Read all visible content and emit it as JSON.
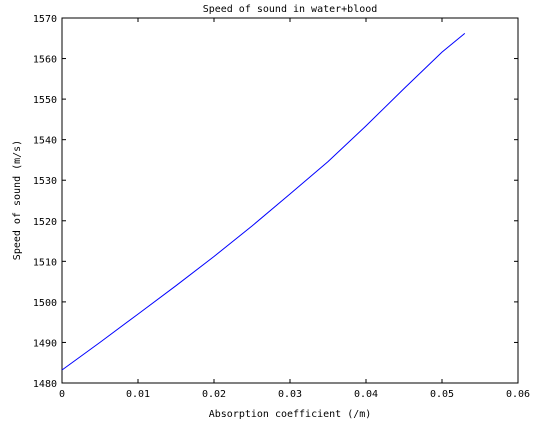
{
  "chart_data": {
    "type": "line",
    "title": "Speed of sound in water+blood",
    "xlabel": "Absorption coefficient (/m)",
    "ylabel": "Speed of sound (m/s)",
    "xlim": [
      0,
      0.06
    ],
    "ylim": [
      1480,
      1570
    ],
    "x_ticks": [
      0,
      0.01,
      0.02,
      0.03,
      0.04,
      0.05,
      0.06
    ],
    "x_tick_labels": [
      "0",
      "0.01",
      "0.02",
      "0.03",
      "0.04",
      "0.05",
      "0.06"
    ],
    "y_ticks": [
      1480,
      1490,
      1500,
      1510,
      1520,
      1530,
      1540,
      1550,
      1560,
      1570
    ],
    "y_tick_labels": [
      "1480",
      "1490",
      "1500",
      "1510",
      "1520",
      "1530",
      "1540",
      "1550",
      "1560",
      "1570"
    ],
    "grid": false,
    "line_color": "#0000ff",
    "series": [
      {
        "x": [
          0,
          0.005,
          0.01,
          0.015,
          0.02,
          0.025,
          0.03,
          0.035,
          0.04,
          0.045,
          0.05,
          0.053
        ],
        "y": [
          1483.2,
          1490.0,
          1497.0,
          1504.0,
          1511.2,
          1518.7,
          1526.6,
          1534.6,
          1543.4,
          1552.6,
          1561.6,
          1566.2
        ]
      }
    ]
  }
}
